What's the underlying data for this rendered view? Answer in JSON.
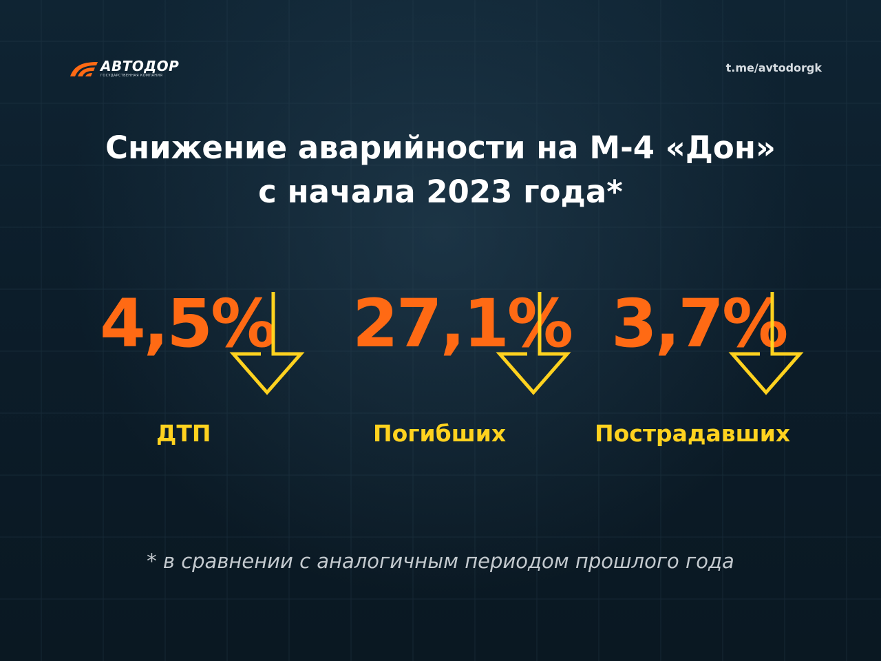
{
  "brand": {
    "name": "АВТОДОР",
    "tagline": "ГОСУДАРСТВЕННАЯ КОМПАНИЯ",
    "color": "#ff6a14"
  },
  "channel": "t.me/avtodorgk",
  "title": {
    "line1": "Снижение аварийности на М-4 «Дон»",
    "line2": "с начала 2023 года*"
  },
  "stats": [
    {
      "value": "4,5%",
      "label": "ДТП",
      "icon": "arrow-down-icon"
    },
    {
      "value": "27,1%",
      "label": "Погибших",
      "icon": "arrow-down-icon"
    },
    {
      "value": "3,7%",
      "label": "Пострадавших",
      "icon": "arrow-down-icon"
    }
  ],
  "footnote": "* в сравнении с аналогичным периодом прошлого года",
  "colors": {
    "value": "#ff6a14",
    "label": "#ffd21f",
    "arrow": "#ffd21f",
    "background": "#0c1d2a"
  }
}
